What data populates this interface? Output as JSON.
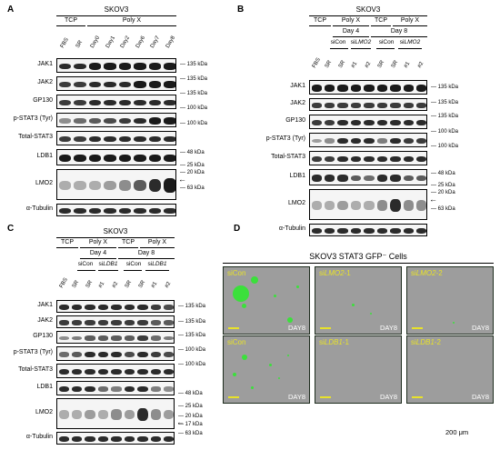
{
  "panels": {
    "A": {
      "label": "A",
      "title": "SKOV3",
      "groups": [
        "TCP",
        "Poly X"
      ],
      "lanes": [
        "FBS",
        "SR",
        "Day0",
        "Day1",
        "Day2",
        "Day6",
        "Day7",
        "Day8"
      ],
      "rows": [
        "JAK1",
        "JAK2",
        "GP130",
        "p-STAT3 (Tyr)",
        "Total-STAT3",
        "LDB1",
        "LMO2",
        "α-Tubulin"
      ],
      "kda": [
        "135 kDa",
        "135 kDa",
        "135 kDa",
        "100 kDa",
        "100 kDa",
        "48 kDa",
        "25 kDa",
        "20 kDa",
        "63 kDa"
      ]
    },
    "B": {
      "label": "B",
      "title": "SKOV3",
      "groups": [
        "TCP",
        "Poly X",
        "TCP",
        "Poly X"
      ],
      "days": [
        "Day 4",
        "Day 8"
      ],
      "si": [
        "siCon",
        "siLMO2",
        "siCon",
        "siLMO2"
      ],
      "lanes": [
        "FBS",
        "SR",
        "SR",
        "#1",
        "#2",
        "SR",
        "SR",
        "#1",
        "#2"
      ],
      "rows": [
        "JAK1",
        "JAK2",
        "GP130",
        "p-STAT3 (Tyr)",
        "Total-STAT3",
        "LDB1",
        "LMO2",
        "α-Tubulin"
      ],
      "kda": [
        "135 kDa",
        "135 kDa",
        "135 kDa",
        "100 kDa",
        "100 kDa",
        "48 kDa",
        "25 kDa",
        "20 kDa",
        "63 kDa"
      ]
    },
    "C": {
      "label": "C",
      "title": "SKOV3",
      "groups": [
        "TCP",
        "Poly X",
        "TCP",
        "Poly X"
      ],
      "days": [
        "Day 4",
        "Day 8"
      ],
      "si": [
        "siCon",
        "siLDB1",
        "siCon",
        "siLDB1"
      ],
      "lanes": [
        "FBS",
        "SR",
        "SR",
        "#1",
        "#2",
        "SR",
        "SR",
        "#1",
        "#2"
      ],
      "rows": [
        "JAK1",
        "JAK2",
        "GP130",
        "p-STAT3 (Tyr)",
        "Total-STAT3",
        "LDB1",
        "LMO2",
        "α-Tubulin"
      ],
      "kda": [
        "135 kDa",
        "135 kDa",
        "135 kDa",
        "100 kDa",
        "100 kDa",
        "48 kDa",
        "25 kDa",
        "20 kDa",
        "17 kDa",
        "63 kDa"
      ]
    },
    "D": {
      "label": "D",
      "title": "SKOV3 STAT3 GFP⁻ Cells",
      "images": [
        {
          "label": "siCon",
          "day": "DAY8"
        },
        {
          "label": "siLMO2-1",
          "day": "DAY8"
        },
        {
          "label": "siLMO2-2",
          "day": "DAY8"
        },
        {
          "label": "siCon",
          "day": "DAY8"
        },
        {
          "label": "siLDB1-1",
          "day": "DAY8"
        },
        {
          "label": "siLDB1-2",
          "day": "DAY8"
        }
      ],
      "scale": "200 μm"
    }
  },
  "colors": {
    "band": "#1a1a1a",
    "gfp": "#3be03b",
    "label": "#e8e22a"
  }
}
